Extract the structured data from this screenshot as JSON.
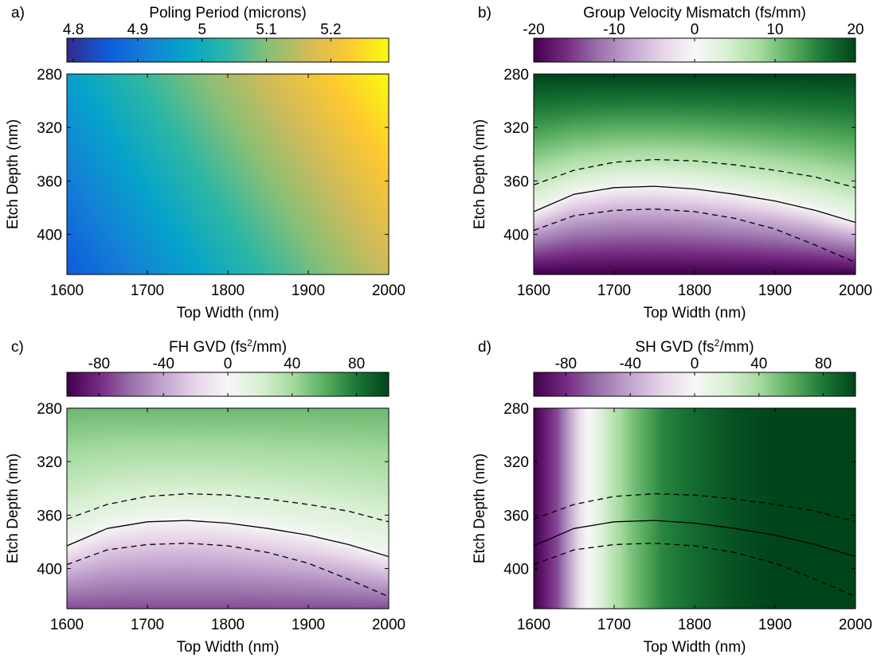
{
  "figure": {
    "x_range": [
      1600,
      2000
    ],
    "y_range": [
      280,
      430
    ],
    "contour_solid_depth_curve": "gvm_zero",
    "colors": {
      "line": "#000000",
      "diverging_low": "#40004b",
      "diverging_mid": "#f7f7f7",
      "diverging_high": "#00441b"
    }
  },
  "chart_data": [
    {
      "type": "heatmap",
      "panel_label": "a)",
      "title": "Poling Period (microns)",
      "xlabel": "Top Width (nm)",
      "ylabel": "Etch Depth (nm)",
      "x_ticks": [
        "1600",
        "1700",
        "1800",
        "1900",
        "2000"
      ],
      "y_ticks": [
        "280",
        "320",
        "360",
        "400"
      ],
      "colorbar_ticks": [
        "4.8",
        "4.9",
        "5",
        "5.1",
        "5.2"
      ],
      "colorbar_range": [
        4.79,
        5.29
      ],
      "colormap": "parula",
      "colormap_stops": [
        "#352a87",
        "#0f5cdd",
        "#1481d6",
        "#06a4ca",
        "#2eb7a4",
        "#87bf77",
        "#d1bb59",
        "#fec832",
        "#f9fb0e"
      ],
      "x": [
        1600,
        2000
      ],
      "y": [
        280,
        430
      ],
      "value_corners": {
        "x1600_y280": 4.97,
        "x2000_y280": 5.29,
        "x1600_y430": 4.85,
        "x2000_y430": 5.16
      },
      "contours": []
    },
    {
      "type": "heatmap",
      "panel_label": "b)",
      "title": "Group Velocity Mismatch (fs/mm)",
      "xlabel": "Top Width (nm)",
      "ylabel": "Etch Depth (nm)",
      "x_ticks": [
        "1600",
        "1700",
        "1800",
        "1900",
        "2000"
      ],
      "y_ticks": [
        "280",
        "320",
        "360",
        "400"
      ],
      "colorbar_ticks": [
        "-20",
        "-10",
        "0",
        "10",
        "20"
      ],
      "colorbar_range": [
        -20,
        20
      ],
      "colormap": "PRGn",
      "colormap_stops": [
        "#40004b",
        "#762a83",
        "#9970ab",
        "#c2a5cf",
        "#e7d4e8",
        "#f7f7f7",
        "#d9f0d3",
        "#a6dba0",
        "#5aae61",
        "#1b7837",
        "#00441b"
      ],
      "x": [
        1600,
        2000
      ],
      "y": [
        280,
        430
      ],
      "value_at_280": 20,
      "value_at_430": -20,
      "contours": [
        {
          "style": "solid",
          "x": [
            1600,
            1650,
            1700,
            1750,
            1800,
            1850,
            1900,
            1950,
            2000
          ],
          "y": [
            383,
            370,
            365,
            364,
            366,
            370,
            375,
            382,
            391
          ]
        },
        {
          "style": "dashed",
          "x": [
            1600,
            1650,
            1700,
            1750,
            1800,
            1850,
            1900,
            1950,
            2000
          ],
          "y": [
            363,
            352,
            346,
            344,
            345,
            348,
            352,
            357,
            365
          ]
        },
        {
          "style": "dashed",
          "x": [
            1600,
            1650,
            1700,
            1750,
            1800,
            1850,
            1900,
            1950,
            2000
          ],
          "y": [
            397,
            386,
            382,
            381,
            383,
            388,
            396,
            408,
            421
          ]
        }
      ]
    },
    {
      "type": "heatmap",
      "panel_label": "c)",
      "title": "FH GVD (fs²/mm)",
      "xlabel": "Top Width (nm)",
      "ylabel": "Etch Depth (nm)",
      "x_ticks": [
        "1600",
        "1700",
        "1800",
        "1900",
        "2000"
      ],
      "y_ticks": [
        "280",
        "320",
        "360",
        "400"
      ],
      "colorbar_ticks": [
        "-80",
        "-40",
        "0",
        "40",
        "80"
      ],
      "colorbar_range": [
        -100,
        100
      ],
      "colormap": "PRGn",
      "colormap_stops": [
        "#40004b",
        "#762a83",
        "#9970ab",
        "#c2a5cf",
        "#e7d4e8",
        "#f7f7f7",
        "#d9f0d3",
        "#a6dba0",
        "#5aae61",
        "#1b7837",
        "#00441b"
      ],
      "x": [
        1600,
        2000
      ],
      "y": [
        280,
        430
      ],
      "value_at_280": 55,
      "value_at_430": -70,
      "contours": [
        {
          "style": "solid",
          "x": [
            1600,
            1650,
            1700,
            1750,
            1800,
            1850,
            1900,
            1950,
            2000
          ],
          "y": [
            383,
            370,
            365,
            364,
            366,
            370,
            375,
            382,
            391
          ]
        },
        {
          "style": "dashed",
          "x": [
            1600,
            1650,
            1700,
            1750,
            1800,
            1850,
            1900,
            1950,
            2000
          ],
          "y": [
            363,
            352,
            346,
            344,
            345,
            348,
            352,
            357,
            365
          ]
        },
        {
          "style": "dashed",
          "x": [
            1600,
            1650,
            1700,
            1750,
            1800,
            1850,
            1900,
            1950,
            2000
          ],
          "y": [
            397,
            386,
            382,
            381,
            383,
            388,
            396,
            408,
            421
          ]
        }
      ]
    },
    {
      "type": "heatmap",
      "panel_label": "d)",
      "title": "SH GVD (fs²/mm)",
      "xlabel": "Top Width (nm)",
      "ylabel": "Etch Depth (nm)",
      "x_ticks": [
        "1600",
        "1700",
        "1800",
        "1900",
        "2000"
      ],
      "y_ticks": [
        "280",
        "320",
        "360",
        "400"
      ],
      "colorbar_ticks": [
        "-80",
        "-40",
        "0",
        "40",
        "80"
      ],
      "colorbar_range": [
        -100,
        100
      ],
      "colormap": "PRGn",
      "colormap_stops": [
        "#40004b",
        "#762a83",
        "#9970ab",
        "#c2a5cf",
        "#e7d4e8",
        "#f7f7f7",
        "#d9f0d3",
        "#a6dba0",
        "#5aae61",
        "#1b7837",
        "#00441b"
      ],
      "x": [
        1600,
        2000
      ],
      "y": [
        280,
        430
      ],
      "value_profile_vs_width": {
        "x": [
          1600,
          1630,
          1660,
          1690,
          1720,
          1760,
          1800,
          1850,
          1900,
          2000
        ],
        "v": [
          -100,
          -70,
          -10,
          25,
          50,
          75,
          85,
          95,
          100,
          100
        ]
      },
      "contours": [
        {
          "style": "solid",
          "x": [
            1600,
            1650,
            1700,
            1750,
            1800,
            1850,
            1900,
            1950,
            2000
          ],
          "y": [
            383,
            370,
            365,
            364,
            366,
            370,
            375,
            382,
            391
          ]
        },
        {
          "style": "dashed",
          "x": [
            1600,
            1650,
            1700,
            1750,
            1800,
            1850,
            1900,
            1950,
            2000
          ],
          "y": [
            363,
            352,
            346,
            344,
            345,
            348,
            352,
            357,
            365
          ]
        },
        {
          "style": "dashed",
          "x": [
            1600,
            1650,
            1700,
            1750,
            1800,
            1850,
            1900,
            1950,
            2000
          ],
          "y": [
            397,
            386,
            382,
            381,
            383,
            388,
            396,
            408,
            421
          ]
        }
      ]
    }
  ]
}
